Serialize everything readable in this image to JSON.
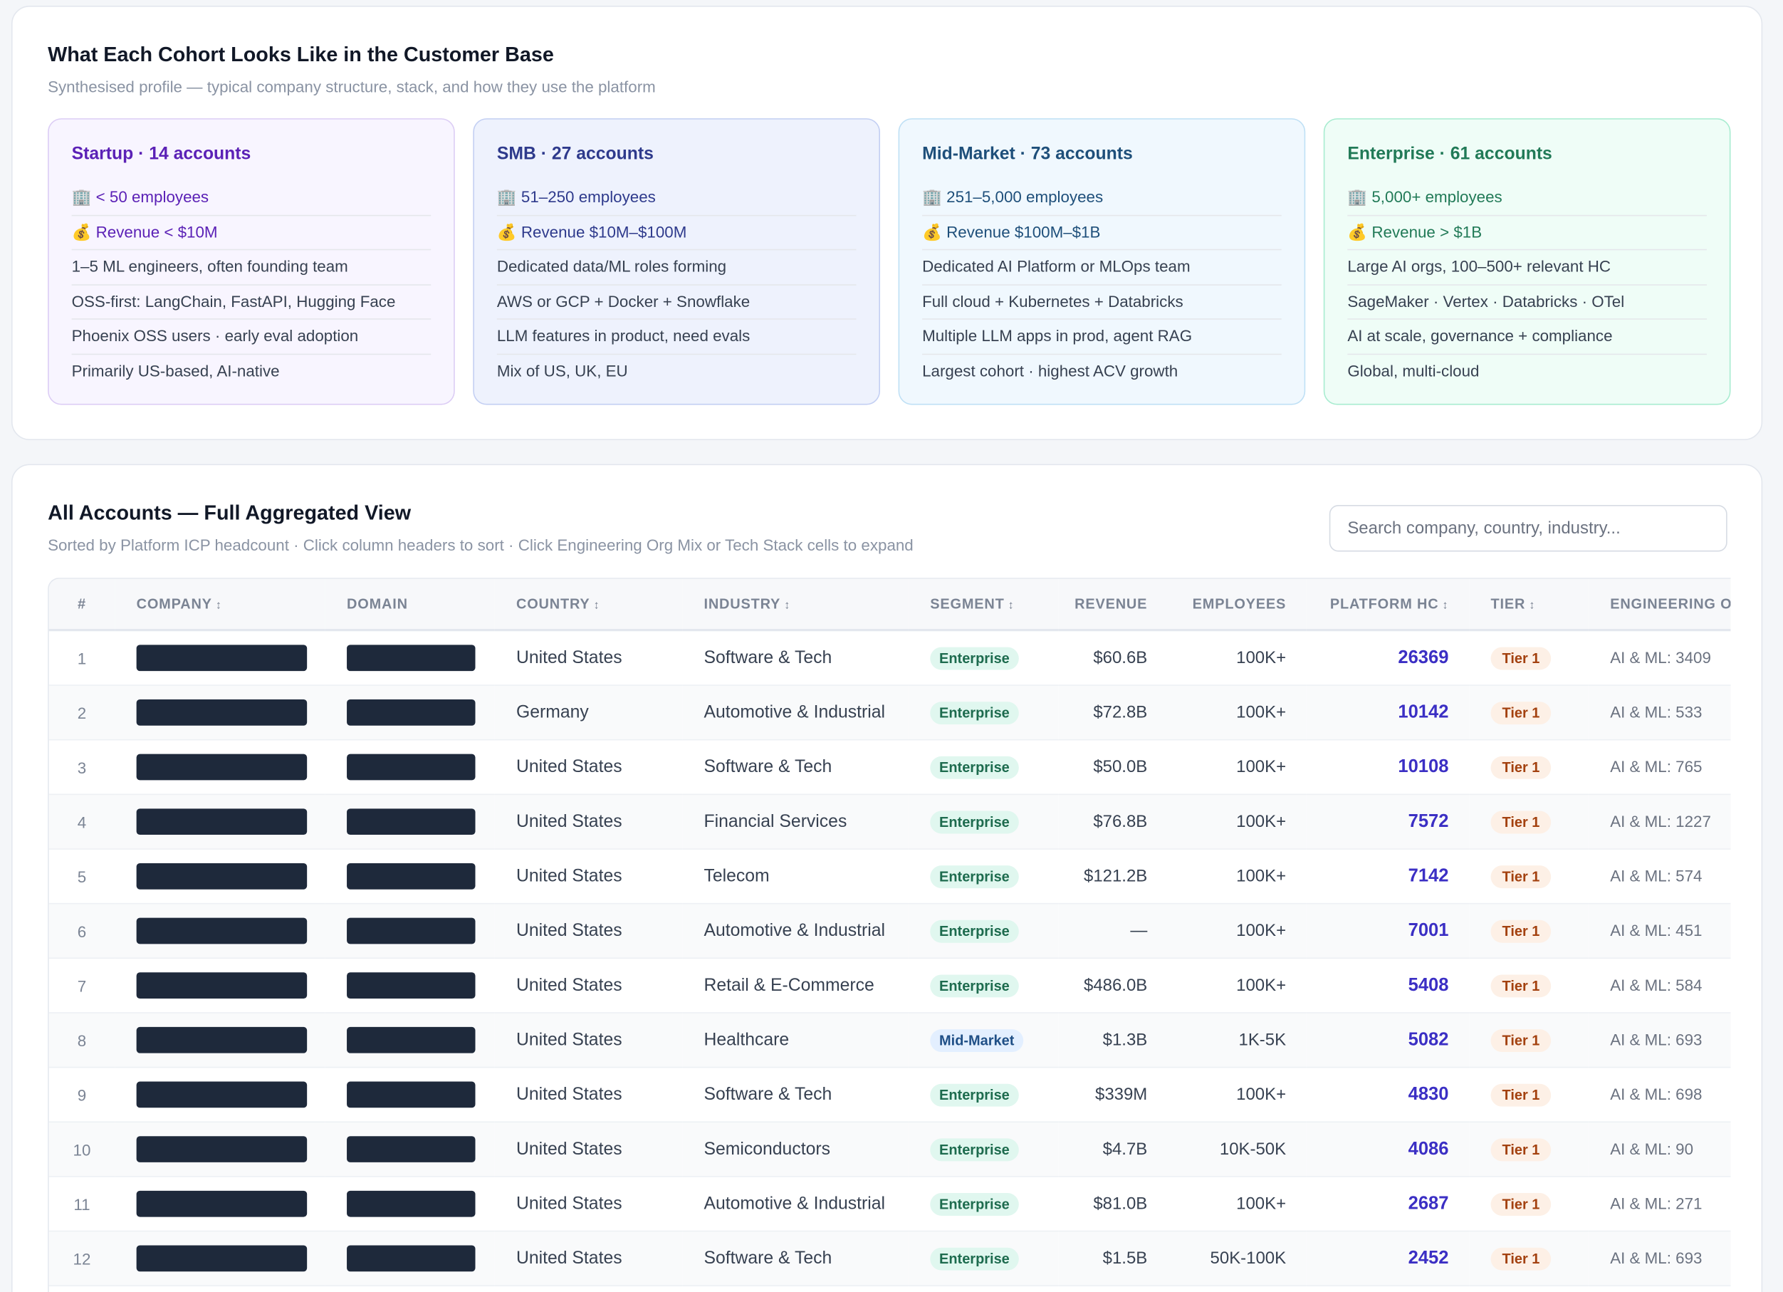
{
  "cohorts": {
    "title": "What Each Cohort Looks Like in the Customer Base",
    "subtitle": "Synthesised profile — typical company structure, stack, and how they use the platform",
    "cards": [
      {
        "title": "Startup · 14 accounts",
        "items": [
          "🏢 < 50 employees",
          "💰 Revenue < $10M",
          "1–5 ML engineers, often founding team",
          "OSS-first: LangChain, FastAPI, Hugging Face",
          "Phoenix OSS users · early eval adoption",
          "Primarily US-based, AI-native"
        ]
      },
      {
        "title": "SMB · 27 accounts",
        "items": [
          "🏢 51–250 employees",
          "💰 Revenue $10M–$100M",
          "Dedicated data/ML roles forming",
          "AWS or GCP + Docker + Snowflake",
          "LLM features in product, need evals",
          "Mix of US, UK, EU"
        ]
      },
      {
        "title": "Mid-Market · 73 accounts",
        "items": [
          "🏢 251–5,000 employees",
          "💰 Revenue $100M–$1B",
          "Dedicated AI Platform or MLOps team",
          "Full cloud + Kubernetes + Databricks",
          "Multiple LLM apps in prod, agent RAG",
          "Largest cohort · highest ACV growth"
        ]
      },
      {
        "title": "Enterprise · 61 accounts",
        "items": [
          "🏢 5,000+ employees",
          "💰 Revenue > $1B",
          "Large AI orgs, 100–500+ relevant HC",
          "SageMaker · Vertex · Databricks · OTel",
          "AI at scale, governance + compliance",
          "Global, multi-cloud"
        ]
      }
    ]
  },
  "accounts": {
    "title": "All Accounts — Full Aggregated View",
    "subtitle": "Sorted by Platform ICP headcount · Click column headers to sort · Click Engineering Org Mix or Tech Stack cells to expand",
    "search_placeholder": "Search company, country, industry...",
    "columns": [
      "#",
      "COMPANY",
      "DOMAIN",
      "COUNTRY",
      "INDUSTRY",
      "SEGMENT",
      "REVENUE",
      "EMPLOYEES",
      "PLATFORM HC",
      "TIER",
      "ENGINEERING ORG MIX"
    ],
    "rows": [
      {
        "rank": 1,
        "country": "United States",
        "industry": "Software & Tech",
        "segment": "Enterprise",
        "revenue": "$60.6B",
        "employees": "100K+",
        "platform_hc": 26369,
        "tier": "Tier 1",
        "eng_mix": "AI & ML: 3409"
      },
      {
        "rank": 2,
        "country": "Germany",
        "industry": "Automotive & Industrial",
        "segment": "Enterprise",
        "revenue": "$72.8B",
        "employees": "100K+",
        "platform_hc": 10142,
        "tier": "Tier 1",
        "eng_mix": "AI & ML: 533"
      },
      {
        "rank": 3,
        "country": "United States",
        "industry": "Software & Tech",
        "segment": "Enterprise",
        "revenue": "$50.0B",
        "employees": "100K+",
        "platform_hc": 10108,
        "tier": "Tier 1",
        "eng_mix": "AI & ML: 765"
      },
      {
        "rank": 4,
        "country": "United States",
        "industry": "Financial Services",
        "segment": "Enterprise",
        "revenue": "$76.8B",
        "employees": "100K+",
        "platform_hc": 7572,
        "tier": "Tier 1",
        "eng_mix": "AI & ML: 1227"
      },
      {
        "rank": 5,
        "country": "United States",
        "industry": "Telecom",
        "segment": "Enterprise",
        "revenue": "$121.2B",
        "employees": "100K+",
        "platform_hc": 7142,
        "tier": "Tier 1",
        "eng_mix": "AI & ML: 574"
      },
      {
        "rank": 6,
        "country": "United States",
        "industry": "Automotive & Industrial",
        "segment": "Enterprise",
        "revenue": "—",
        "employees": "100K+",
        "platform_hc": 7001,
        "tier": "Tier 1",
        "eng_mix": "AI & ML: 451"
      },
      {
        "rank": 7,
        "country": "United States",
        "industry": "Retail & E-Commerce",
        "segment": "Enterprise",
        "revenue": "$486.0B",
        "employees": "100K+",
        "platform_hc": 5408,
        "tier": "Tier 1",
        "eng_mix": "AI & ML: 584"
      },
      {
        "rank": 8,
        "country": "United States",
        "industry": "Healthcare",
        "segment": "Mid-Market",
        "revenue": "$1.3B",
        "employees": "1K-5K",
        "platform_hc": 5082,
        "tier": "Tier 1",
        "eng_mix": "AI & ML: 693"
      },
      {
        "rank": 9,
        "country": "United States",
        "industry": "Software & Tech",
        "segment": "Enterprise",
        "revenue": "$339M",
        "employees": "100K+",
        "platform_hc": 4830,
        "tier": "Tier 1",
        "eng_mix": "AI & ML: 698"
      },
      {
        "rank": 10,
        "country": "United States",
        "industry": "Semiconductors",
        "segment": "Enterprise",
        "revenue": "$4.7B",
        "employees": "10K-50K",
        "platform_hc": 4086,
        "tier": "Tier 1",
        "eng_mix": "AI & ML: 90"
      },
      {
        "rank": 11,
        "country": "United States",
        "industry": "Automotive & Industrial",
        "segment": "Enterprise",
        "revenue": "$81.0B",
        "employees": "100K+",
        "platform_hc": 2687,
        "tier": "Tier 1",
        "eng_mix": "AI & ML: 271"
      },
      {
        "rank": 12,
        "country": "United States",
        "industry": "Software & Tech",
        "segment": "Enterprise",
        "revenue": "$1.5B",
        "employees": "50K-100K",
        "platform_hc": 2452,
        "tier": "Tier 1",
        "eng_mix": "AI & ML: 693"
      }
    ]
  }
}
